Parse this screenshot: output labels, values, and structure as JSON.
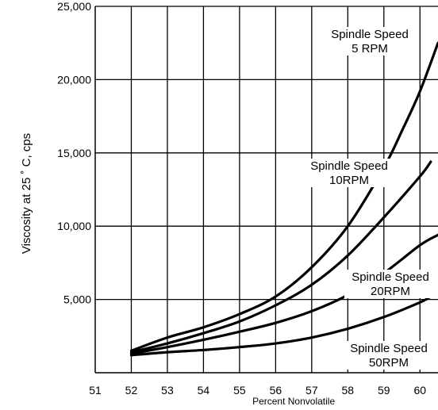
{
  "chart_data": {
    "type": "line",
    "title": "",
    "xlabel": "Percent Nonvolatile",
    "ylabel": "Viscosity at 25 ˚ C, cps",
    "xlim": [
      51,
      60.5
    ],
    "ylim": [
      0,
      25000
    ],
    "x_ticks": [
      "51",
      "52",
      "53",
      "54",
      "55",
      "56",
      "57",
      "58",
      "59",
      "60"
    ],
    "x_tick_values": [
      51,
      52,
      53,
      54,
      55,
      56,
      57,
      58,
      59,
      60
    ],
    "y_ticks": [
      "5,000",
      "10,000",
      "15,000",
      "20,000",
      "25,000"
    ],
    "y_tick_values": [
      5000,
      10000,
      15000,
      20000,
      25000
    ],
    "grid": true,
    "series": [
      {
        "key": "rpm5",
        "label_line1": "Spindle Speed",
        "label_line2": "5 RPM",
        "x": [
          52,
          53,
          54,
          55,
          56,
          57,
          58,
          59,
          59.5,
          60,
          60.5
        ],
        "y": [
          1500,
          2400,
          3100,
          4000,
          5200,
          7200,
          10000,
          14000,
          16500,
          19200,
          22500
        ]
      },
      {
        "key": "rpm10",
        "label_line1": "Spindle Speed",
        "label_line2": "10RPM",
        "x": [
          52,
          53,
          54,
          55,
          56,
          57,
          58,
          59,
          60,
          60.3
        ],
        "y": [
          1400,
          2000,
          2700,
          3500,
          4600,
          6000,
          8000,
          10600,
          13400,
          14400
        ]
      },
      {
        "key": "rpm20",
        "label_line1": "Spindle Speed",
        "label_line2": "20RPM",
        "x": [
          52,
          53,
          54,
          55,
          56,
          57,
          58,
          59,
          60,
          60.5
        ],
        "y": [
          1300,
          1750,
          2250,
          2800,
          3400,
          4200,
          5300,
          6800,
          8700,
          9400
        ]
      },
      {
        "key": "rpm50",
        "label_line1": "Spindle Speed",
        "label_line2": "50RPM",
        "x": [
          52,
          53,
          54,
          55,
          56,
          57,
          58,
          59,
          60,
          60.3
        ],
        "y": [
          1200,
          1400,
          1550,
          1750,
          2000,
          2400,
          3000,
          3800,
          4800,
          5200
        ]
      }
    ]
  }
}
